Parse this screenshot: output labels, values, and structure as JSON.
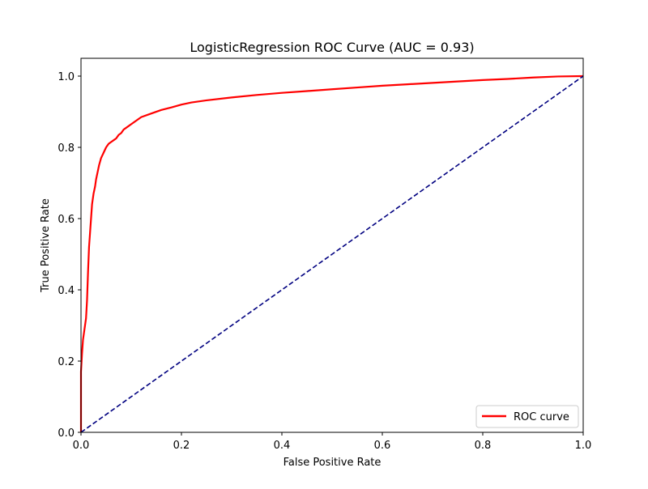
{
  "chart_data": {
    "type": "line",
    "title": "LogisticRegression ROC Curve (AUC = 0.93)",
    "xlabel": "False Positive Rate",
    "ylabel": "True Positive Rate",
    "xlim": [
      0.0,
      1.0
    ],
    "ylim": [
      0.0,
      1.05
    ],
    "xticks": [
      0.0,
      0.2,
      0.4,
      0.6,
      0.8,
      1.0
    ],
    "xtick_labels": [
      "0.0",
      "0.2",
      "0.4",
      "0.6",
      "0.8",
      "1.0"
    ],
    "yticks": [
      0.0,
      0.2,
      0.4,
      0.6,
      0.8,
      1.0
    ],
    "ytick_labels": [
      "0.0",
      "0.2",
      "0.4",
      "0.6",
      "0.8",
      "1.0"
    ],
    "grid": false,
    "legend_position": "lower-right",
    "series": [
      {
        "name": "ROC curve",
        "color": "#ff0000",
        "style": "solid",
        "x": [
          0.0,
          0.0,
          0.002,
          0.004,
          0.006,
          0.008,
          0.01,
          0.012,
          0.014,
          0.016,
          0.018,
          0.02,
          0.022,
          0.025,
          0.028,
          0.03,
          0.033,
          0.036,
          0.04,
          0.045,
          0.05,
          0.055,
          0.06,
          0.065,
          0.07,
          0.075,
          0.08,
          0.085,
          0.09,
          0.1,
          0.11,
          0.12,
          0.14,
          0.16,
          0.18,
          0.2,
          0.22,
          0.25,
          0.3,
          0.35,
          0.4,
          0.45,
          0.5,
          0.55,
          0.6,
          0.65,
          0.7,
          0.75,
          0.8,
          0.85,
          0.9,
          0.95,
          1.0
        ],
        "y": [
          0.0,
          0.17,
          0.22,
          0.26,
          0.28,
          0.3,
          0.32,
          0.37,
          0.45,
          0.52,
          0.56,
          0.6,
          0.64,
          0.67,
          0.69,
          0.71,
          0.73,
          0.75,
          0.77,
          0.785,
          0.8,
          0.81,
          0.815,
          0.82,
          0.825,
          0.835,
          0.84,
          0.85,
          0.855,
          0.865,
          0.875,
          0.885,
          0.895,
          0.905,
          0.912,
          0.92,
          0.926,
          0.932,
          0.94,
          0.947,
          0.953,
          0.958,
          0.963,
          0.968,
          0.973,
          0.977,
          0.981,
          0.985,
          0.989,
          0.992,
          0.996,
          0.999,
          1.0
        ]
      },
      {
        "name": "",
        "color": "#000080",
        "style": "dashed",
        "x": [
          0.0,
          1.0
        ],
        "y": [
          0.0,
          1.0
        ]
      }
    ]
  }
}
